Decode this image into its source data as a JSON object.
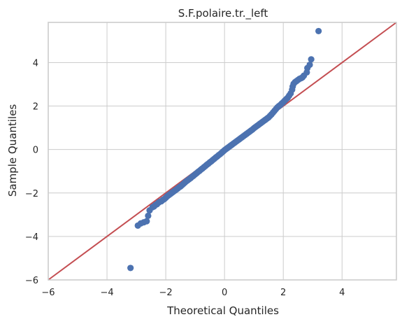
{
  "chart_data": {
    "type": "scatter",
    "title": "S.F.polaire.tr._left",
    "xlabel": "Theoretical Quantiles",
    "ylabel": "Sample Quantiles",
    "xlim": [
      -6,
      5.85
    ],
    "ylim": [
      -6,
      5.85
    ],
    "xticks": [
      -6,
      -4,
      -2,
      0,
      2,
      4
    ],
    "yticks": [
      -6,
      -4,
      -2,
      0,
      2,
      4
    ],
    "xtick_labels": [
      "−6",
      "−4",
      "−2",
      "0",
      "2",
      "4"
    ],
    "ytick_labels": [
      "−6",
      "−4",
      "−2",
      "0",
      "2",
      "4"
    ],
    "grid": true,
    "colors": {
      "points": "#4c72b0",
      "reference_line": "#c44e52",
      "grid": "#cccccc",
      "spine": "#cccccc"
    },
    "reference_line": {
      "x": [
        -6,
        5.85
      ],
      "y": [
        -6,
        5.85
      ]
    },
    "series": [
      {
        "points": [
          [
            -3.2,
            -5.45
          ],
          [
            -2.95,
            -3.5
          ],
          [
            -2.85,
            -3.4
          ],
          [
            -2.75,
            -3.35
          ],
          [
            -2.65,
            -3.3
          ],
          [
            -2.6,
            -3.05
          ],
          [
            -2.55,
            -2.8
          ],
          [
            -2.45,
            -2.65
          ],
          [
            -2.4,
            -2.62
          ],
          [
            -2.35,
            -2.55
          ],
          [
            -2.3,
            -2.52
          ],
          [
            -2.25,
            -2.45
          ],
          [
            -2.2,
            -2.4
          ],
          [
            -2.15,
            -2.38
          ],
          [
            -2.1,
            -2.32
          ],
          [
            -2.05,
            -2.28
          ],
          [
            -2.0,
            -2.22
          ],
          [
            -1.95,
            -2.15
          ],
          [
            -1.9,
            -2.1
          ],
          [
            -1.85,
            -2.05
          ],
          [
            -1.8,
            -2.0
          ],
          [
            -1.75,
            -1.95
          ],
          [
            -1.7,
            -1.9
          ],
          [
            -1.65,
            -1.85
          ],
          [
            -1.6,
            -1.8
          ],
          [
            -1.55,
            -1.74
          ],
          [
            -1.5,
            -1.7
          ],
          [
            -1.45,
            -1.64
          ],
          [
            -1.4,
            -1.58
          ],
          [
            -1.35,
            -1.52
          ],
          [
            -1.3,
            -1.46
          ],
          [
            -1.25,
            -1.41
          ],
          [
            -1.2,
            -1.36
          ],
          [
            -1.15,
            -1.31
          ],
          [
            -1.1,
            -1.25
          ],
          [
            -1.05,
            -1.2
          ],
          [
            -1.0,
            -1.14
          ],
          [
            -0.95,
            -1.09
          ],
          [
            -0.9,
            -1.03
          ],
          [
            -0.85,
            -0.98
          ],
          [
            -0.8,
            -0.92
          ],
          [
            -0.75,
            -0.87
          ],
          [
            -0.7,
            -0.81
          ],
          [
            -0.65,
            -0.76
          ],
          [
            -0.6,
            -0.7
          ],
          [
            -0.55,
            -0.65
          ],
          [
            -0.5,
            -0.59
          ],
          [
            -0.45,
            -0.54
          ],
          [
            -0.4,
            -0.48
          ],
          [
            -0.35,
            -0.43
          ],
          [
            -0.3,
            -0.37
          ],
          [
            -0.25,
            -0.32
          ],
          [
            -0.2,
            -0.26
          ],
          [
            -0.15,
            -0.21
          ],
          [
            -0.1,
            -0.15
          ],
          [
            -0.05,
            -0.09
          ],
          [
            0.0,
            -0.03
          ],
          [
            0.05,
            0.02
          ],
          [
            0.1,
            0.07
          ],
          [
            0.15,
            0.12
          ],
          [
            0.2,
            0.17
          ],
          [
            0.25,
            0.22
          ],
          [
            0.3,
            0.27
          ],
          [
            0.35,
            0.32
          ],
          [
            0.4,
            0.37
          ],
          [
            0.45,
            0.42
          ],
          [
            0.5,
            0.47
          ],
          [
            0.55,
            0.52
          ],
          [
            0.6,
            0.57
          ],
          [
            0.65,
            0.62
          ],
          [
            0.7,
            0.67
          ],
          [
            0.75,
            0.72
          ],
          [
            0.8,
            0.77
          ],
          [
            0.85,
            0.82
          ],
          [
            0.9,
            0.87
          ],
          [
            0.95,
            0.92
          ],
          [
            1.0,
            0.98
          ],
          [
            1.05,
            1.03
          ],
          [
            1.1,
            1.08
          ],
          [
            1.15,
            1.13
          ],
          [
            1.2,
            1.18
          ],
          [
            1.25,
            1.23
          ],
          [
            1.3,
            1.28
          ],
          [
            1.35,
            1.33
          ],
          [
            1.4,
            1.38
          ],
          [
            1.45,
            1.43
          ],
          [
            1.5,
            1.48
          ],
          [
            1.55,
            1.55
          ],
          [
            1.6,
            1.62
          ],
          [
            1.65,
            1.7
          ],
          [
            1.7,
            1.78
          ],
          [
            1.75,
            1.86
          ],
          [
            1.8,
            1.94
          ],
          [
            1.85,
            2.0
          ],
          [
            1.9,
            2.05
          ],
          [
            1.95,
            2.12
          ],
          [
            2.0,
            2.18
          ],
          [
            2.05,
            2.25
          ],
          [
            2.1,
            2.32
          ],
          [
            2.15,
            2.38
          ],
          [
            2.2,
            2.48
          ],
          [
            2.25,
            2.58
          ],
          [
            2.3,
            2.75
          ],
          [
            2.32,
            2.9
          ],
          [
            2.35,
            3.02
          ],
          [
            2.4,
            3.1
          ],
          [
            2.45,
            3.15
          ],
          [
            2.5,
            3.2
          ],
          [
            2.55,
            3.25
          ],
          [
            2.6,
            3.28
          ],
          [
            2.65,
            3.32
          ],
          [
            2.7,
            3.4
          ],
          [
            2.8,
            3.55
          ],
          [
            2.82,
            3.75
          ],
          [
            2.9,
            3.9
          ],
          [
            2.95,
            4.15
          ],
          [
            3.2,
            5.45
          ]
        ]
      }
    ]
  }
}
